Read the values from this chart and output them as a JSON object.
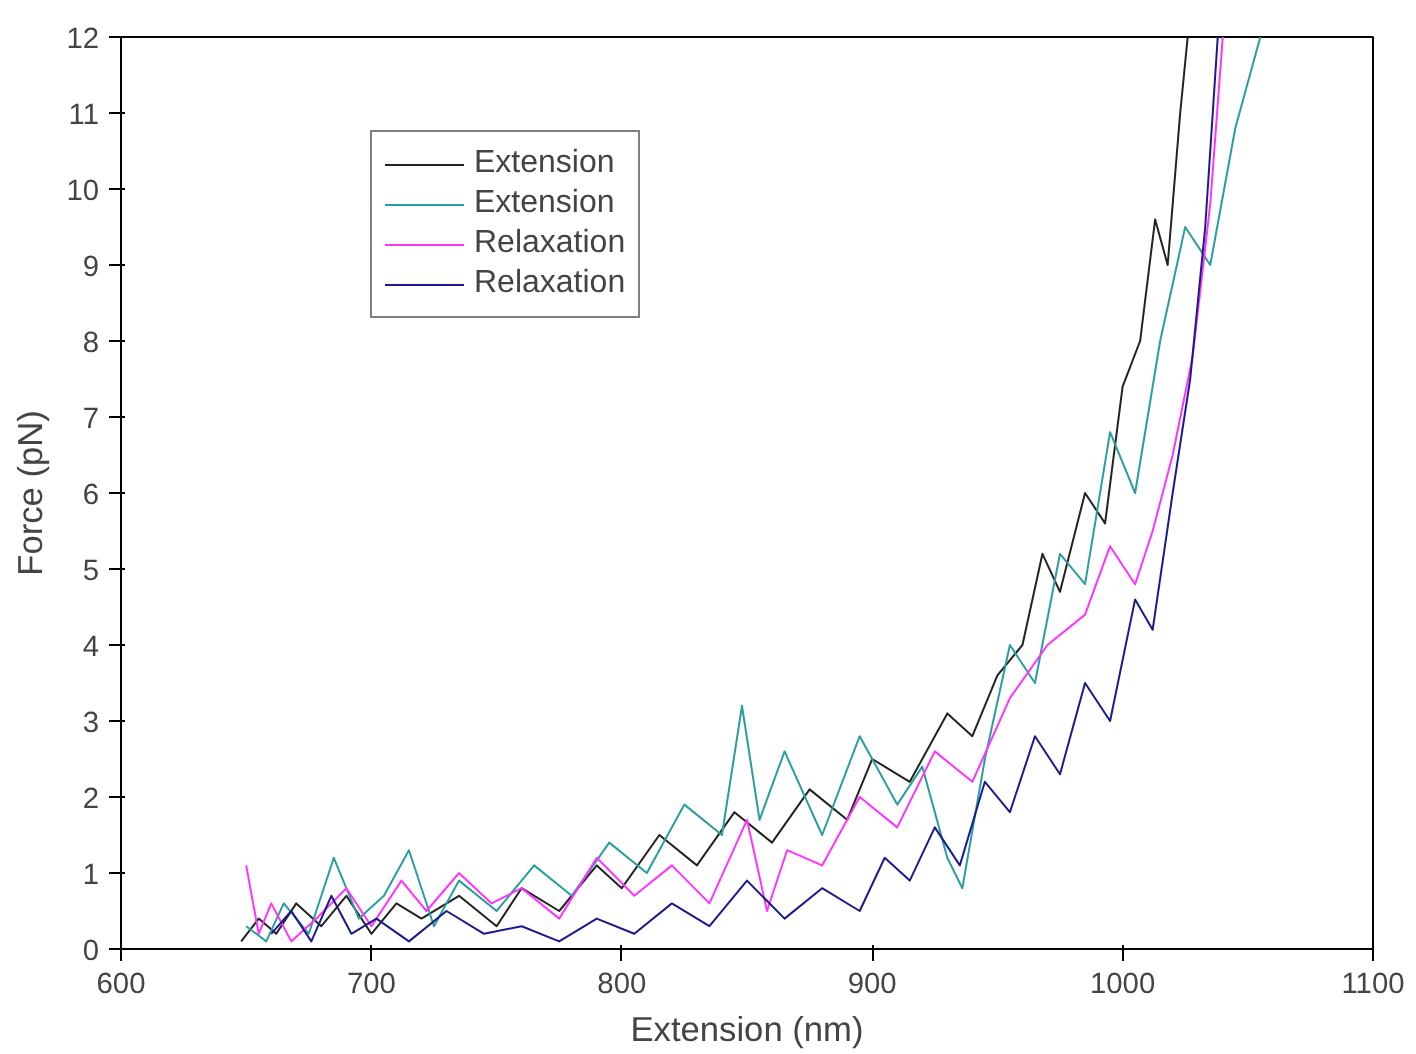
{
  "chart_data": {
    "type": "line",
    "xlabel": "Extension (nm)",
    "ylabel": "Force (pN)",
    "xlim": [
      600,
      1100
    ],
    "ylim": [
      0,
      12
    ],
    "xticks": [
      600,
      700,
      800,
      900,
      1000,
      1100
    ],
    "yticks": [
      0,
      1,
      2,
      3,
      4,
      5,
      6,
      7,
      8,
      9,
      10,
      11,
      12
    ],
    "grid": false,
    "legend": "top left",
    "marker": "none",
    "line_style": "solid",
    "series": [
      {
        "name": "Extension",
        "color": "#222222",
        "x": [
          648,
          655,
          662,
          670,
          680,
          690,
          700,
          710,
          720,
          735,
          750,
          760,
          775,
          790,
          800,
          815,
          830,
          845,
          860,
          875,
          890,
          900,
          915,
          930,
          940,
          950,
          960,
          968,
          975,
          985,
          993,
          1000,
          1007,
          1013,
          1018,
          1023,
          1026
        ],
        "values": [
          0.1,
          0.4,
          0.2,
          0.6,
          0.3,
          0.7,
          0.2,
          0.6,
          0.4,
          0.7,
          0.3,
          0.8,
          0.5,
          1.1,
          0.8,
          1.5,
          1.1,
          1.8,
          1.4,
          2.1,
          1.7,
          2.5,
          2.2,
          3.1,
          2.8,
          3.6,
          4.0,
          5.2,
          4.7,
          6.0,
          5.6,
          7.4,
          8.0,
          9.6,
          9.0,
          11.0,
          12.0
        ]
      },
      {
        "name": "Extension",
        "color": "#2a9d9d",
        "x": [
          650,
          658,
          665,
          675,
          685,
          695,
          705,
          715,
          725,
          735,
          750,
          765,
          780,
          795,
          810,
          825,
          840,
          848,
          855,
          865,
          880,
          895,
          910,
          920,
          930,
          936,
          945,
          955,
          965,
          975,
          985,
          995,
          1005,
          1015,
          1025,
          1035,
          1045,
          1055
        ],
        "values": [
          0.3,
          0.1,
          0.6,
          0.2,
          1.2,
          0.4,
          0.7,
          1.3,
          0.3,
          0.9,
          0.5,
          1.1,
          0.7,
          1.4,
          1.0,
          1.9,
          1.5,
          3.2,
          1.7,
          2.6,
          1.5,
          2.8,
          1.9,
          2.4,
          1.2,
          0.8,
          2.5,
          4.0,
          3.5,
          5.2,
          4.8,
          6.8,
          6.0,
          8.0,
          9.5,
          9.0,
          10.8,
          12.0
        ]
      },
      {
        "name": "Relaxation",
        "color": "#ff33ff",
        "x": [
          650,
          655,
          660,
          668,
          678,
          690,
          700,
          712,
          722,
          735,
          748,
          760,
          775,
          790,
          805,
          820,
          835,
          850,
          858,
          866,
          880,
          895,
          910,
          925,
          940,
          955,
          970,
          985,
          995,
          1005,
          1012,
          1020,
          1028,
          1035,
          1040
        ],
        "values": [
          1.1,
          0.2,
          0.6,
          0.1,
          0.4,
          0.8,
          0.3,
          0.9,
          0.5,
          1.0,
          0.6,
          0.8,
          0.4,
          1.2,
          0.7,
          1.1,
          0.6,
          1.7,
          0.5,
          1.3,
          1.1,
          2.0,
          1.6,
          2.6,
          2.2,
          3.3,
          4.0,
          4.4,
          5.3,
          4.8,
          5.5,
          6.5,
          7.8,
          9.8,
          12.0
        ]
      },
      {
        "name": "Relaxation",
        "color": "#1a1a8c",
        "x": [
          660,
          668,
          676,
          684,
          692,
          702,
          715,
          730,
          745,
          760,
          775,
          790,
          805,
          820,
          835,
          850,
          865,
          880,
          895,
          905,
          915,
          925,
          935,
          945,
          955,
          965,
          975,
          985,
          995,
          1005,
          1012,
          1020,
          1027,
          1033,
          1038
        ],
        "values": [
          0.2,
          0.5,
          0.1,
          0.7,
          0.2,
          0.4,
          0.1,
          0.5,
          0.2,
          0.3,
          0.1,
          0.4,
          0.2,
          0.6,
          0.3,
          0.9,
          0.4,
          0.8,
          0.5,
          1.2,
          0.9,
          1.6,
          1.1,
          2.2,
          1.8,
          2.8,
          2.3,
          3.5,
          3.0,
          4.6,
          4.2,
          6.0,
          7.5,
          9.5,
          12.0
        ]
      }
    ]
  }
}
